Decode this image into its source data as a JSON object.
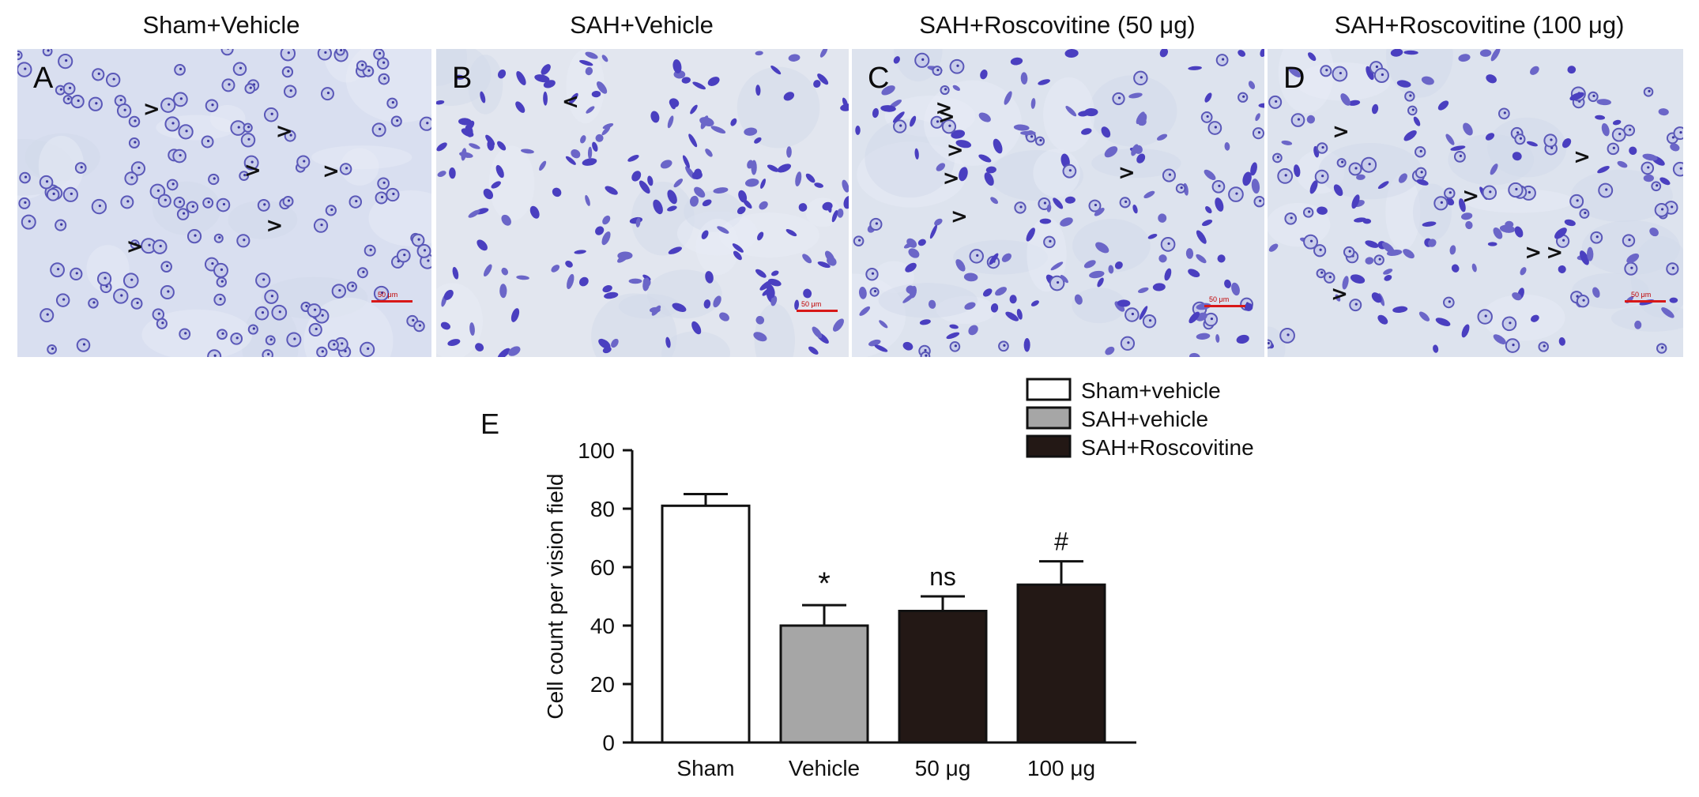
{
  "panels": [
    {
      "title": "Sham+Vehicle",
      "letter": "A",
      "scale": "50 μm"
    },
    {
      "title": "SAH+Vehicle",
      "letter": "B",
      "scale": "50 μm"
    },
    {
      "title": "SAH+Roscovitine (50 μg)",
      "letter": "C",
      "scale": "50 μm"
    },
    {
      "title": "SAH+Roscovitine (100 μg)",
      "letter": "D",
      "scale": "50 μm"
    }
  ],
  "chart_letter": "E",
  "chart_data": {
    "type": "bar",
    "categories": [
      "Sham",
      "Vehicle",
      "50 μg",
      "100 μg"
    ],
    "values": [
      81,
      40,
      45,
      54
    ],
    "errors": [
      4,
      7,
      5,
      8
    ],
    "annotations": [
      "",
      "*",
      "ns",
      "#"
    ],
    "ylabel": "Cell count per vision field",
    "ylim": [
      0,
      100
    ],
    "yticks": [
      0,
      20,
      40,
      60,
      80,
      100
    ],
    "legend": [
      {
        "label": "Sham+vehicle",
        "color": "#ffffff"
      },
      {
        "label": "SAH+vehicle",
        "color": "#a6a6a6"
      },
      {
        "label": "SAH+Roscovitine",
        "color": "#231815"
      }
    ],
    "bar_colors": [
      "#ffffff",
      "#a6a6a6",
      "#231815",
      "#231815"
    ],
    "legend_position": "top-right"
  }
}
